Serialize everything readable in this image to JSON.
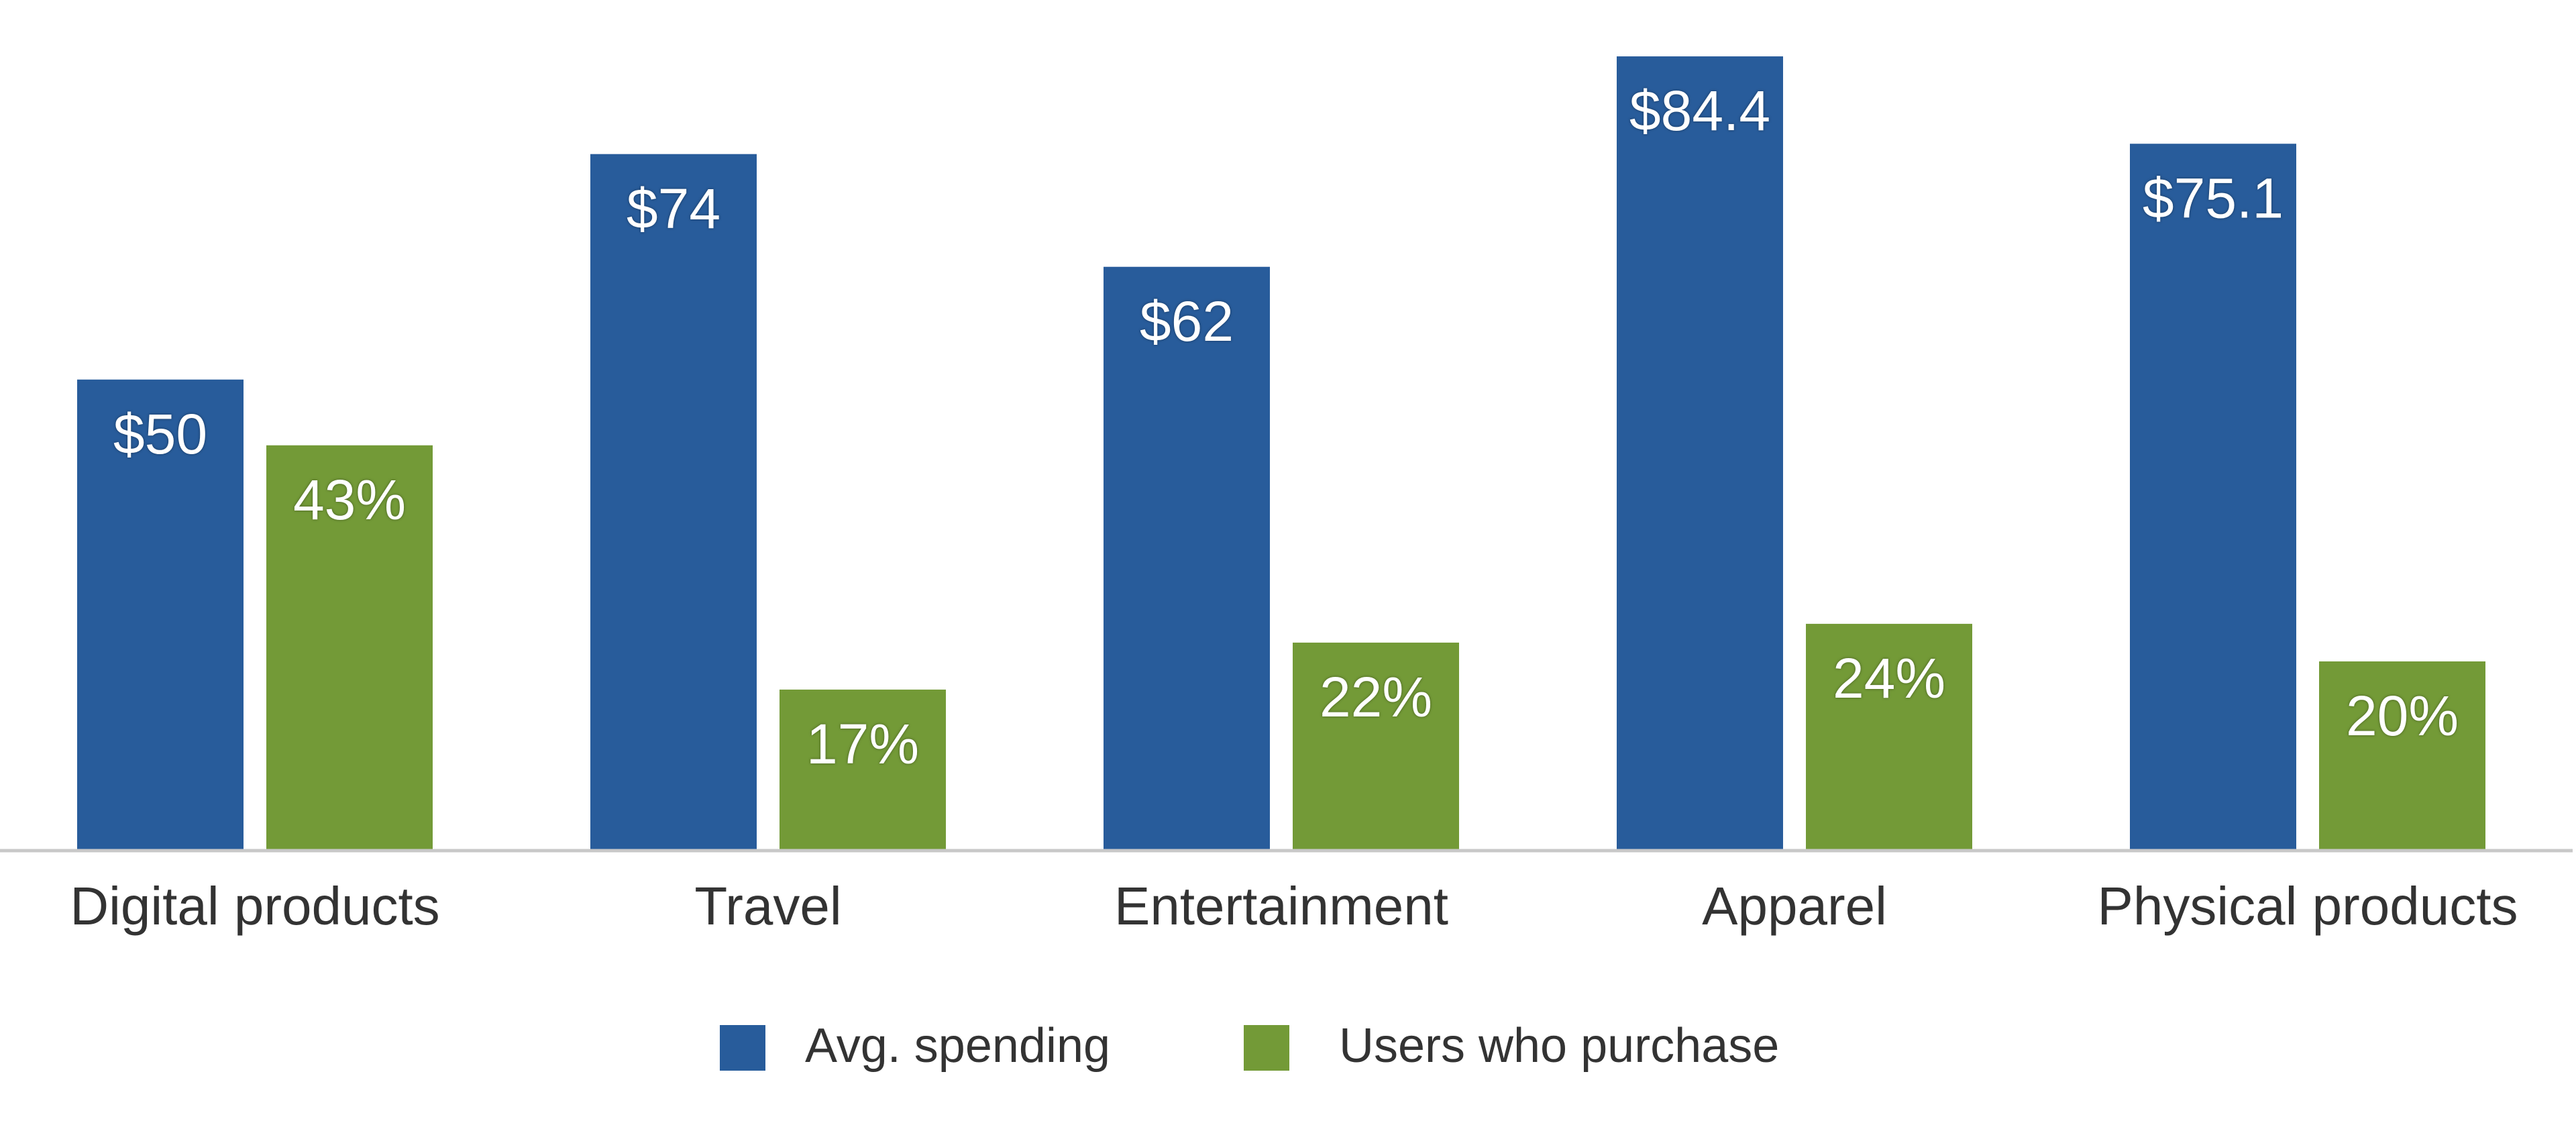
{
  "chart_data": {
    "type": "bar",
    "title": "",
    "xlabel": "",
    "ylabel": "",
    "categories": [
      "Digital products",
      "Travel",
      "Entertainment",
      "Apparel",
      "Physical products"
    ],
    "series": [
      {
        "name": "Avg. spending",
        "values": [
          50,
          74,
          62,
          84.4,
          75.1
        ],
        "labels": [
          "$50",
          "$74",
          "$62",
          "$84.4",
          "$75.1"
        ],
        "color": "#285c9b"
      },
      {
        "name": "Users who purchase",
        "values": [
          43,
          17,
          22,
          24,
          20
        ],
        "labels": [
          "43%",
          "17%",
          "22%",
          "24%",
          "20%"
        ],
        "color": "#739a37"
      }
    ],
    "ylim": [
      0,
      90.4
    ],
    "grid": false,
    "legend": "bottom-center"
  }
}
